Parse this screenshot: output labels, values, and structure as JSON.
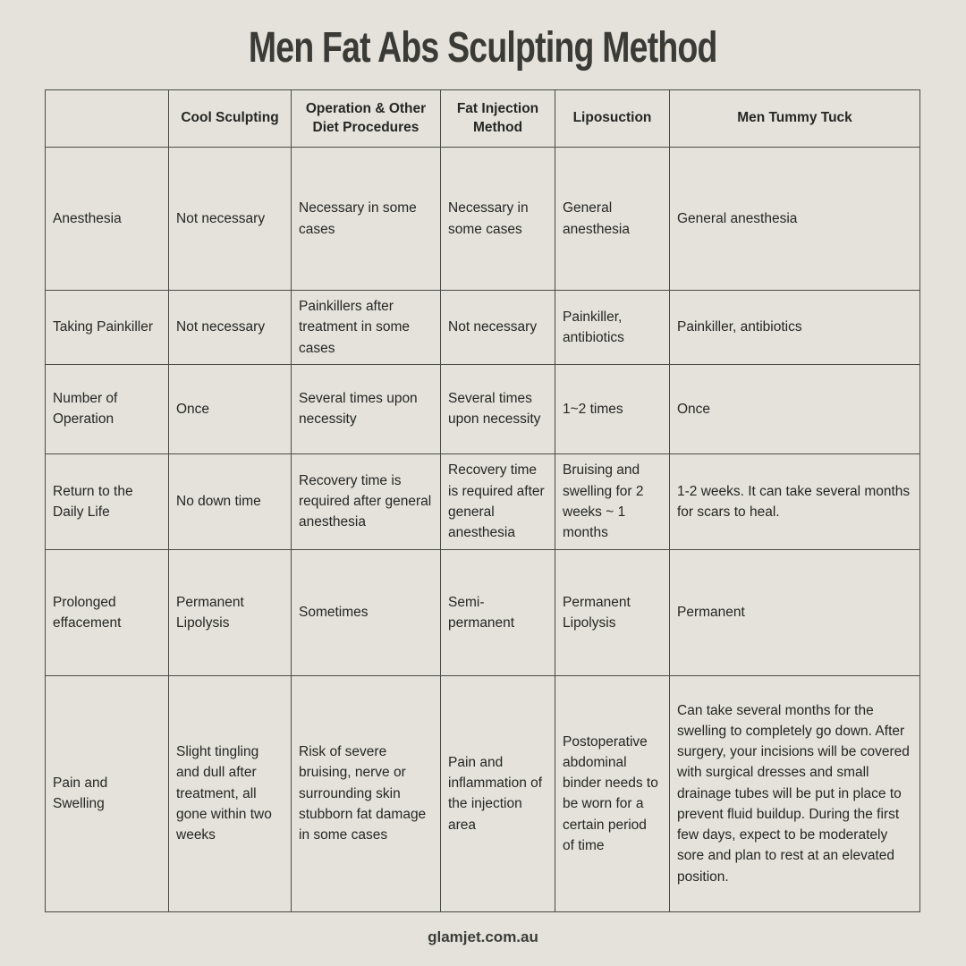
{
  "page": {
    "title": "Men Fat Abs Sculpting Method",
    "footer": "glamjet.com.au",
    "background_color": "#e4e2db",
    "border_color": "#4a4a47",
    "text_color": "#262623"
  },
  "chart_data": {
    "type": "table",
    "title": "Men Fat Abs Sculpting Method",
    "columns": [
      "",
      "Cool Sculpting",
      "Operation & Other Diet Procedures",
      "Fat Injection Method",
      "Liposuction",
      "Men Tummy Tuck"
    ],
    "rows": [
      {
        "label": "Anesthesia",
        "values": [
          "Not necessary",
          "Necessary in some cases",
          "Necessary in some cases",
          "General anesthesia",
          "General anesthesia"
        ]
      },
      {
        "label": "Taking Painkiller",
        "values": [
          "Not necessary",
          "Painkillers after treatment in some cases",
          "Not necessary",
          "Painkiller, antibiotics",
          "Painkiller, antibiotics"
        ]
      },
      {
        "label": "Number of Operation",
        "values": [
          "Once",
          "Several times upon necessity",
          "Several times upon necessity",
          "1~2 times",
          "Once"
        ]
      },
      {
        "label": "Return to the Daily Life",
        "values": [
          "No down time",
          "Recovery time is required after general anesthesia",
          "Recovery time is required after general anesthesia",
          "Bruising and swelling for 2 weeks ~ 1 months",
          "1-2 weeks. It can take several months for scars to heal."
        ]
      },
      {
        "label": "Prolonged effacement",
        "values": [
          "Permanent Lipolysis",
          "Sometimes",
          "Semi-permanent",
          "Permanent Lipolysis",
          "Permanent"
        ]
      },
      {
        "label": "Pain and Swelling",
        "values": [
          "Slight tingling and dull after treatment, all gone within two weeks",
          "Risk of severe bruising, nerve or surrounding skin stubborn fat damage in some cases",
          "Pain and inflammation of the injection area",
          "Postoperative abdominal binder needs to be worn for a certain period of time",
          "Can take several months for the swelling to completely go down. After surgery, your incisions will be covered with surgical dresses and small drainage tubes will be put in place to prevent fluid buildup. During the first few days, expect to be moderately sore and plan to rest at an elevated position."
        ]
      }
    ]
  }
}
